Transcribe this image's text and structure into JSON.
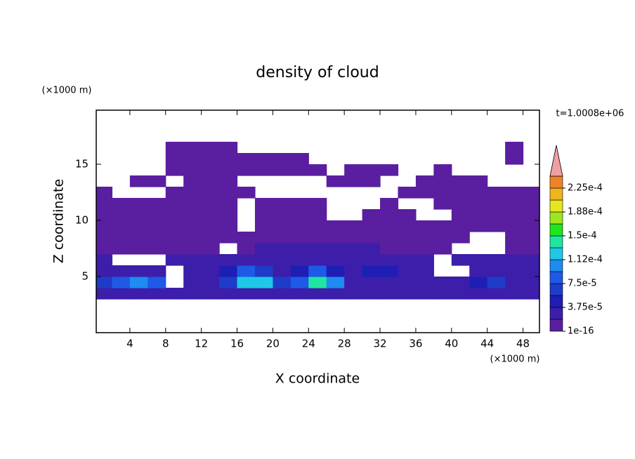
{
  "chart_data": {
    "type": "contour",
    "title": "density of cloud",
    "time_label": "t=1.0008e+06",
    "xlabel": "X coordinate",
    "ylabel": "Z coordinate",
    "x_unit": "(×1000 m)",
    "y_unit": "(×1000 m)",
    "xlim": [
      0,
      50
    ],
    "ylim": [
      0,
      20
    ],
    "xticks": [
      4,
      8,
      12,
      16,
      20,
      24,
      28,
      32,
      36,
      40,
      44,
      48
    ],
    "yticks": [
      5,
      10,
      15
    ],
    "x": [
      1,
      3,
      5,
      7,
      9,
      11,
      13,
      15,
      17,
      19,
      21,
      23,
      25,
      27,
      29,
      31,
      33,
      35,
      37,
      39,
      41,
      43,
      45,
      47,
      49
    ],
    "y": [
      3.5,
      4.5,
      5.5,
      6.5,
      7.5,
      8.5,
      9.5,
      10.5,
      11.5,
      12.5,
      13.5,
      14.5,
      15.5,
      16.5
    ],
    "z": [
      [
        2e-05,
        2e-05,
        2e-05,
        2e-05,
        2e-05,
        2e-05,
        2e-05,
        2e-05,
        2e-05,
        2e-05,
        2e-05,
        2e-05,
        2e-05,
        2e-05,
        2e-05,
        2e-05,
        2e-05,
        2e-05,
        2e-05,
        2e-05,
        2e-05,
        2e-05,
        2e-05,
        2e-05,
        2e-05
      ],
      [
        6e-05,
        9e-05,
        0.00011,
        8e-05,
        null,
        2e-05,
        3e-05,
        7e-05,
        0.00013,
        0.00012,
        6e-05,
        8e-05,
        0.00014,
        0.0001,
        3e-05,
        3e-05,
        3e-05,
        3e-05,
        3e-05,
        2e-05,
        3e-05,
        5e-05,
        6e-05,
        3e-05,
        2e-05
      ],
      [
        2e-05,
        2e-05,
        3e-05,
        2e-05,
        null,
        2e-05,
        3e-05,
        4e-05,
        8e-05,
        6e-05,
        3e-05,
        4e-05,
        9e-05,
        5e-05,
        3e-05,
        4e-05,
        4e-05,
        3e-05,
        2e-05,
        null,
        null,
        3e-05,
        3e-05,
        3e-05,
        3e-05
      ],
      [
        2e-05,
        null,
        null,
        null,
        2e-05,
        2e-05,
        2e-05,
        2e-05,
        3e-05,
        3e-05,
        3e-05,
        3e-05,
        3e-05,
        3e-05,
        3e-05,
        3e-05,
        3e-05,
        2e-05,
        2e-05,
        null,
        2e-05,
        2e-05,
        2e-05,
        2e-05,
        2e-05
      ],
      [
        1e-05,
        1e-05,
        1e-05,
        1e-05,
        1e-05,
        1e-05,
        1e-05,
        null,
        1e-05,
        2e-05,
        2e-05,
        2e-05,
        2e-05,
        2e-05,
        2e-05,
        2e-05,
        1e-05,
        1e-05,
        1e-05,
        1e-05,
        null,
        null,
        null,
        1e-05,
        1e-05
      ],
      [
        1e-05,
        1e-05,
        1e-05,
        1e-05,
        1e-05,
        1e-05,
        1e-05,
        1e-05,
        1e-05,
        1e-05,
        1e-05,
        1e-05,
        1e-05,
        1e-05,
        1e-05,
        1e-05,
        1e-05,
        1e-05,
        1e-05,
        1e-05,
        1e-05,
        null,
        null,
        1e-05,
        1e-05
      ],
      [
        1e-05,
        1e-05,
        1e-05,
        1e-05,
        1e-05,
        1e-05,
        1e-05,
        1e-05,
        null,
        1e-05,
        1e-05,
        1e-05,
        1e-05,
        1e-05,
        1e-05,
        1e-05,
        1e-05,
        1e-05,
        1e-05,
        1e-05,
        1e-05,
        1e-05,
        1e-05,
        1e-05,
        1e-05
      ],
      [
        1e-05,
        1e-05,
        1e-05,
        1e-05,
        1e-05,
        1e-05,
        1e-05,
        1e-05,
        null,
        1e-05,
        1e-05,
        1e-05,
        1e-05,
        null,
        null,
        1e-05,
        1e-05,
        1e-05,
        null,
        null,
        1e-05,
        1e-05,
        1e-05,
        1e-05,
        1e-05
      ],
      [
        1e-05,
        1e-05,
        1e-05,
        1e-05,
        1e-05,
        1e-05,
        1e-05,
        1e-05,
        null,
        1e-05,
        1e-05,
        1e-05,
        1e-05,
        null,
        null,
        null,
        1e-05,
        null,
        null,
        1e-05,
        1e-05,
        1e-05,
        1e-05,
        1e-05,
        1e-05
      ],
      [
        1e-05,
        null,
        null,
        null,
        1e-05,
        1e-05,
        1e-05,
        1e-05,
        1e-05,
        null,
        null,
        null,
        null,
        null,
        null,
        null,
        null,
        1e-05,
        1e-05,
        1e-05,
        1e-05,
        1e-05,
        1e-05,
        1e-05,
        1e-05
      ],
      [
        null,
        null,
        1e-05,
        1e-05,
        null,
        1e-05,
        1e-05,
        1e-05,
        null,
        null,
        null,
        null,
        null,
        1e-05,
        1e-05,
        1e-05,
        null,
        null,
        1e-05,
        1e-05,
        1e-05,
        1e-05,
        null,
        null,
        null
      ],
      [
        null,
        null,
        null,
        null,
        1e-05,
        1e-05,
        1e-05,
        1e-05,
        1e-05,
        1e-05,
        1e-05,
        1e-05,
        1e-05,
        null,
        1e-05,
        1e-05,
        1e-05,
        null,
        null,
        1e-05,
        null,
        null,
        null,
        null,
        null
      ],
      [
        null,
        null,
        null,
        null,
        1e-05,
        1e-05,
        1e-05,
        1e-05,
        1e-05,
        1e-05,
        1e-05,
        1e-05,
        null,
        null,
        null,
        null,
        null,
        null,
        null,
        null,
        null,
        null,
        null,
        1e-05,
        null
      ],
      [
        null,
        null,
        null,
        null,
        1e-05,
        1e-05,
        1e-05,
        1e-05,
        null,
        null,
        null,
        null,
        null,
        null,
        null,
        null,
        null,
        null,
        null,
        null,
        null,
        null,
        null,
        1e-05,
        null
      ]
    ],
    "colorbar": {
      "levels": [
        1e-16,
        1.875e-05,
        3.75e-05,
        5.625e-05,
        7.5e-05,
        9.375e-05,
        0.0001125,
        0.00013125,
        0.00015,
        0.00016875,
        0.0001875,
        0.00020625,
        0.000225,
        0.00024375
      ],
      "colors": [
        "#5a1ea0",
        "#3c1eaa",
        "#1e1eb4",
        "#1e3cc8",
        "#1e5ae6",
        "#1e8cf0",
        "#1ec8e6",
        "#1ee6a0",
        "#1ee61e",
        "#a0e61e",
        "#e6e61e",
        "#f0b41e",
        "#f08228"
      ],
      "extend_color": "#f0a0a0",
      "ticks": [
        {
          "value": 1e-16,
          "label": "1e-16"
        },
        {
          "value": 3.75e-05,
          "label": "3.75e-5"
        },
        {
          "value": 7.5e-05,
          "label": "7.5e-5"
        },
        {
          "value": 0.0001125,
          "label": "1.12e-4"
        },
        {
          "value": 0.00015,
          "label": "1.5e-4"
        },
        {
          "value": 0.0001875,
          "label": "1.88e-4"
        },
        {
          "value": 0.000225,
          "label": "2.25e-4"
        }
      ]
    }
  }
}
